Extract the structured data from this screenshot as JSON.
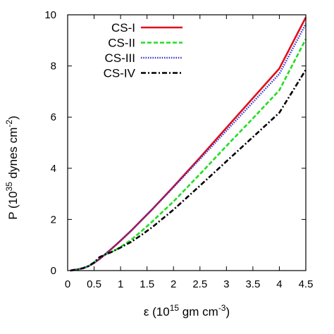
{
  "chart_data": {
    "type": "line",
    "xlabel": {
      "symbol": "ε",
      "prefix": " (10",
      "exponent": "15",
      "unit": " gm cm",
      "unit_exponent": "-3",
      "suffix": ")"
    },
    "ylabel": {
      "symbol": "P",
      "prefix": " (10",
      "exponent": "35",
      "unit": " dynes cm",
      "unit_exponent": "-2",
      "suffix": ")"
    },
    "xlim": [
      0,
      4.5
    ],
    "ylim": [
      0,
      10
    ],
    "xticks": [
      0,
      0.5,
      1,
      1.5,
      2,
      2.5,
      3,
      3.5,
      4,
      4.5
    ],
    "xtick_labels": [
      "0",
      "0.5",
      "1",
      "1.5",
      "2",
      "2.5",
      "3",
      "3.5",
      "4",
      "4.5"
    ],
    "yticks": [
      0,
      2,
      4,
      6,
      8,
      10
    ],
    "ytick_labels": [
      "0",
      "2",
      "4",
      "6",
      "8",
      "10"
    ],
    "grid": false,
    "legend_position": "top-left",
    "series": [
      {
        "name": "CS-I",
        "color": "#e0101a",
        "style": "solid",
        "x": [
          0.05,
          0.1,
          0.2,
          0.3,
          0.4,
          0.5,
          0.6,
          0.7,
          0.8,
          0.9,
          1.0,
          1.2,
          1.4,
          1.6,
          2.0,
          2.5,
          3.0,
          3.5,
          4.0,
          4.5
        ],
        "y": [
          0.0,
          0.02,
          0.05,
          0.1,
          0.18,
          0.3,
          0.45,
          0.62,
          0.8,
          0.98,
          1.17,
          1.56,
          1.98,
          2.4,
          3.28,
          4.42,
          5.58,
          6.74,
          7.9,
          9.9
        ]
      },
      {
        "name": "CS-II",
        "color": "#22dd22",
        "style": "dashed",
        "x": [
          0.05,
          0.1,
          0.2,
          0.3,
          0.4,
          0.5,
          0.6,
          0.7,
          0.8,
          0.9,
          1.0,
          1.2,
          1.4,
          1.6,
          2.0,
          2.5,
          3.0,
          3.5,
          4.0,
          4.5
        ],
        "y": [
          0.0,
          0.02,
          0.05,
          0.1,
          0.18,
          0.32,
          0.52,
          0.62,
          0.7,
          0.8,
          0.92,
          1.2,
          1.55,
          1.92,
          2.7,
          3.77,
          4.87,
          5.95,
          7.05,
          9.05
        ]
      },
      {
        "name": "CS-III",
        "color": "#3333cc",
        "style": "dotted",
        "x": [
          0.05,
          0.1,
          0.2,
          0.3,
          0.4,
          0.5,
          0.6,
          0.7,
          0.8,
          0.9,
          1.0,
          1.2,
          1.4,
          1.6,
          2.0,
          2.5,
          3.0,
          3.5,
          4.0,
          4.5
        ],
        "y": [
          0.0,
          0.02,
          0.05,
          0.1,
          0.18,
          0.3,
          0.45,
          0.62,
          0.8,
          0.98,
          1.17,
          1.56,
          1.98,
          2.4,
          3.26,
          4.36,
          5.47,
          6.58,
          7.69,
          9.65
        ]
      },
      {
        "name": "CS-IV",
        "color": "#000000",
        "style": "dashdot",
        "x": [
          0.05,
          0.1,
          0.2,
          0.3,
          0.4,
          0.5,
          0.6,
          0.7,
          0.8,
          0.9,
          1.0,
          1.2,
          1.4,
          1.6,
          2.0,
          2.5,
          3.0,
          3.5,
          4.0,
          4.5
        ],
        "y": [
          0.0,
          0.02,
          0.05,
          0.1,
          0.18,
          0.32,
          0.52,
          0.62,
          0.7,
          0.8,
          0.9,
          1.12,
          1.4,
          1.7,
          2.38,
          3.32,
          4.27,
          5.22,
          6.17,
          7.85
        ]
      }
    ]
  }
}
